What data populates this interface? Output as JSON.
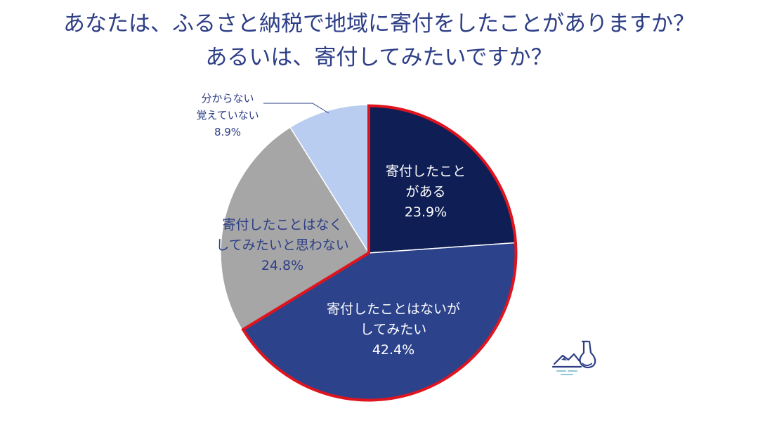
{
  "title": {
    "line1": "あなたは、ふるさと納税で地域に寄付をしたことがありますか？",
    "line2": "あるいは、寄付してみたいですか？"
  },
  "colors": {
    "title": "#2d3e86",
    "highlight_outline": "#e0141e",
    "label_dark": "#2d3e86",
    "label_light": "#ffffff"
  },
  "chart_data": {
    "type": "pie",
    "unit": "%",
    "slices": [
      {
        "label": [
          "寄付したこと",
          "がある"
        ],
        "value": 23.9,
        "value_text": "23.9%",
        "color": "#0f1f55",
        "highlight": true
      },
      {
        "label": [
          "寄付したことはないが",
          "してみたい"
        ],
        "value": 42.4,
        "value_text": "42.4%",
        "color": "#2c438c",
        "highlight": true
      },
      {
        "label": [
          "寄付したことはなく",
          "してみたいと思わない"
        ],
        "value": 24.8,
        "value_text": "24.8%",
        "color": "#a6a6a6",
        "highlight": false
      },
      {
        "label": [
          "分からない",
          "覚えていない"
        ],
        "value": 8.9,
        "value_text": "8.9%",
        "color": "#b9cdf1",
        "highlight": false
      }
    ]
  },
  "logo_icon": "flask-landscape-icon"
}
